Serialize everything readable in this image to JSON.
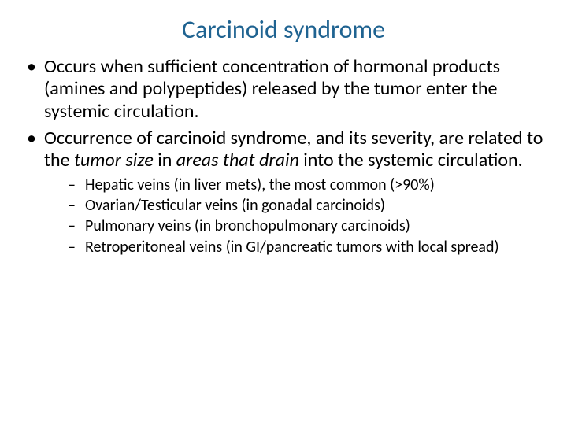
{
  "title": {
    "text": "Carcinoid syndrome",
    "color": "#1f6391",
    "fontsize": 32
  },
  "body": {
    "fontsize_level1": 24,
    "fontsize_level2": 20,
    "text_color": "#000000"
  },
  "bullets": [
    {
      "pre": "Occurs when sufficient concentration of hormonal products (amines and polypeptides) released by the tumor enter the systemic circulation."
    },
    {
      "pre": "Occurrence of carcinoid syndrome, and its severity, are related to the ",
      "em1": "tumor size",
      "mid": " in ",
      "em2": "areas that drain",
      "post": " into the systemic circulation.",
      "sub": [
        "Hepatic veins (in liver mets), the most common (>90%)",
        "Ovarian/Testicular veins (in gonadal carcinoids)",
        "Pulmonary veins (in bronchopulmonary carcinoids)",
        "Retroperitoneal veins (in GI/pancreatic tumors with local spread)"
      ]
    }
  ]
}
